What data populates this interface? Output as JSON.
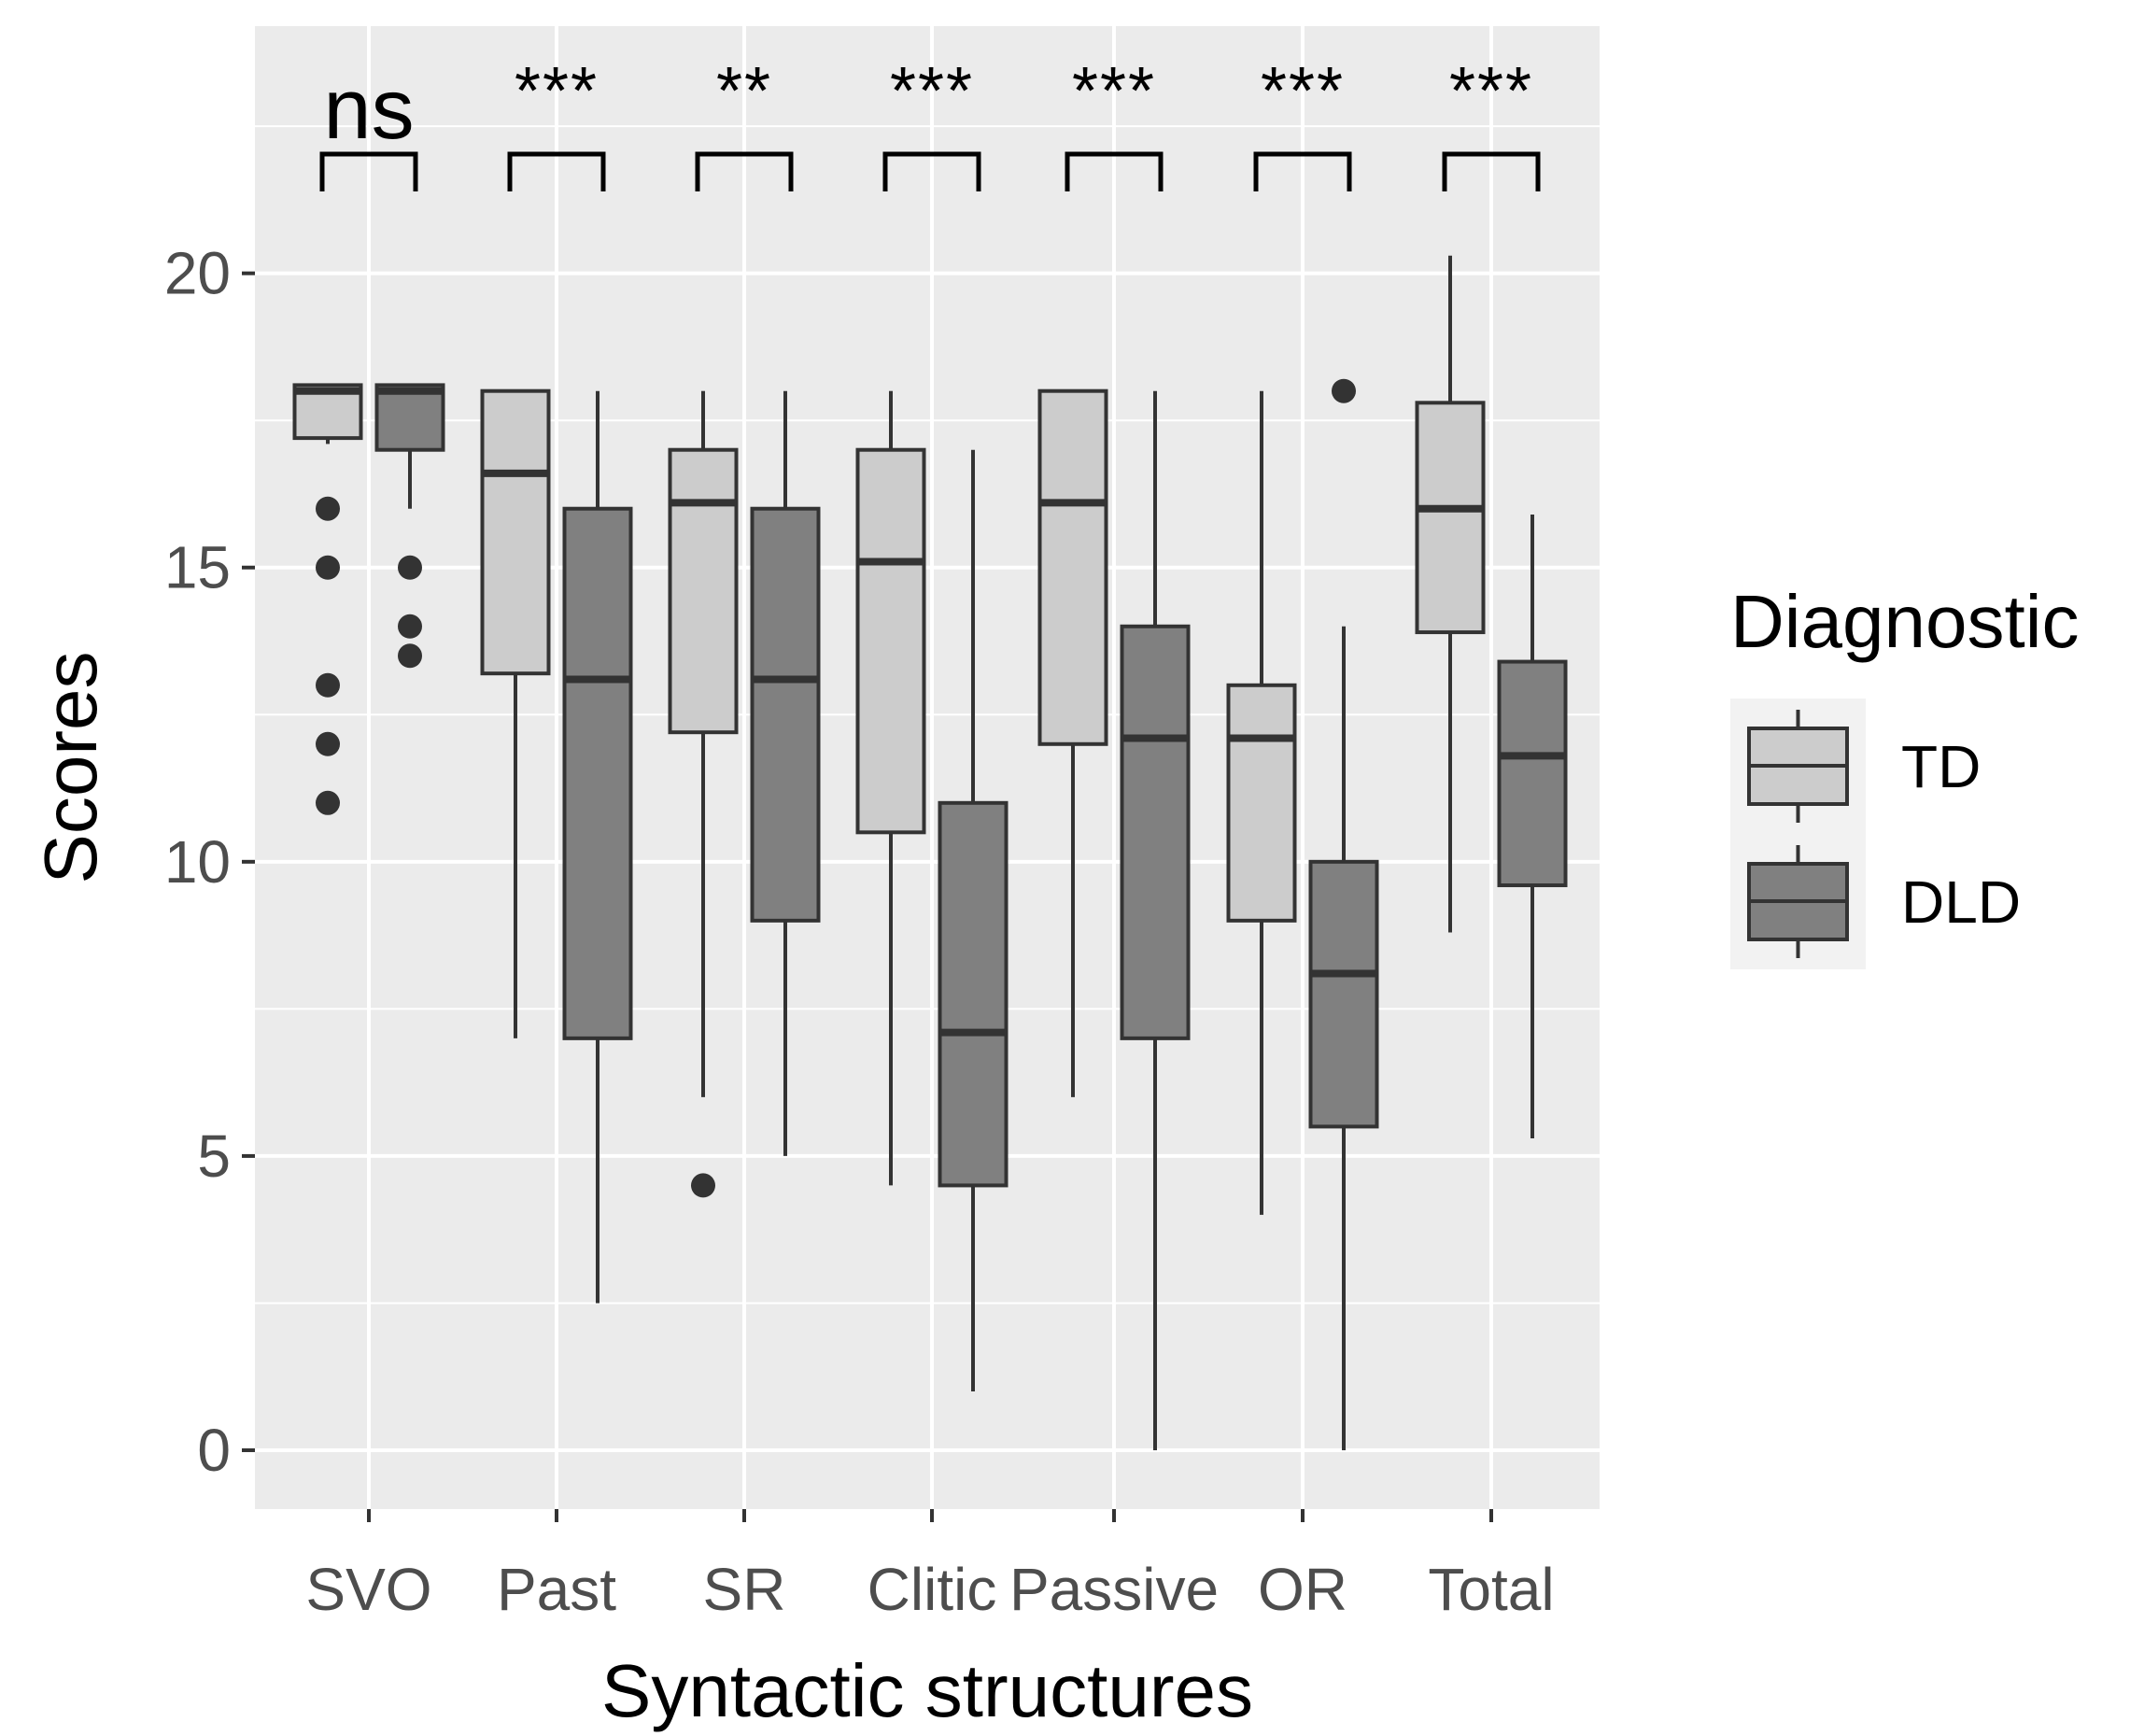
{
  "chart_data": {
    "type": "boxplot",
    "title": "",
    "xlabel": "Syntactic structures",
    "ylabel": "Scores",
    "ylim": [
      -1,
      24.2
    ],
    "yticks": [
      0,
      5,
      10,
      15,
      20
    ],
    "categories": [
      "SVO",
      "Past",
      "SR",
      "Clitic",
      "Passive",
      "OR",
      "Total"
    ],
    "legend": {
      "title": "Diagnostic",
      "position": "right",
      "entries": [
        {
          "name": "TD",
          "fill": "#cccccc"
        },
        {
          "name": "DLD",
          "fill": "#808080"
        }
      ]
    },
    "significance": [
      "ns",
      "***",
      "**",
      "***",
      "***",
      "***",
      "***"
    ],
    "series": [
      {
        "name": "TD",
        "fill": "#cccccc",
        "boxes": [
          {
            "whisker_low": 17.1,
            "q1": 17.2,
            "median": 18,
            "q3": 18.1,
            "whisker_high": 18.1,
            "outliers": [
              16,
              15,
              13,
              12,
              11
            ]
          },
          {
            "whisker_low": 7,
            "q1": 13.2,
            "median": 16.6,
            "q3": 18,
            "whisker_high": 18,
            "outliers": []
          },
          {
            "whisker_low": 6,
            "q1": 12.2,
            "median": 16.1,
            "q3": 17,
            "whisker_high": 18,
            "outliers": [
              4.5
            ]
          },
          {
            "whisker_low": 4.5,
            "q1": 10.5,
            "median": 15.1,
            "q3": 17,
            "whisker_high": 18,
            "outliers": []
          },
          {
            "whisker_low": 6,
            "q1": 12,
            "median": 16.1,
            "q3": 18,
            "whisker_high": 18,
            "outliers": []
          },
          {
            "whisker_low": 4,
            "q1": 9,
            "median": 12.1,
            "q3": 13,
            "whisker_high": 18,
            "outliers": []
          },
          {
            "whisker_low": 8.8,
            "q1": 13.9,
            "median": 16,
            "q3": 17.8,
            "whisker_high": 20.3,
            "outliers": []
          }
        ]
      },
      {
        "name": "DLD",
        "fill": "#808080",
        "boxes": [
          {
            "whisker_low": 16,
            "q1": 17,
            "median": 18,
            "q3": 18.1,
            "whisker_high": 18.1,
            "outliers": [
              15,
              14,
              13.5
            ]
          },
          {
            "whisker_low": 2.5,
            "q1": 7,
            "median": 13.1,
            "q3": 16,
            "whisker_high": 18,
            "outliers": []
          },
          {
            "whisker_low": 5,
            "q1": 9,
            "median": 13.1,
            "q3": 16,
            "whisker_high": 18,
            "outliers": []
          },
          {
            "whisker_low": 1,
            "q1": 4.5,
            "median": 7.1,
            "q3": 11,
            "whisker_high": 17,
            "outliers": []
          },
          {
            "whisker_low": 0,
            "q1": 7,
            "median": 12.1,
            "q3": 14,
            "whisker_high": 18,
            "outliers": []
          },
          {
            "whisker_low": 0,
            "q1": 5.5,
            "median": 8.1,
            "q3": 10,
            "whisker_high": 14,
            "outliers": [
              18
            ]
          },
          {
            "whisker_low": 5.3,
            "q1": 9.6,
            "median": 11.8,
            "q3": 13.4,
            "whisker_high": 15.9,
            "outliers": []
          }
        ]
      }
    ]
  }
}
